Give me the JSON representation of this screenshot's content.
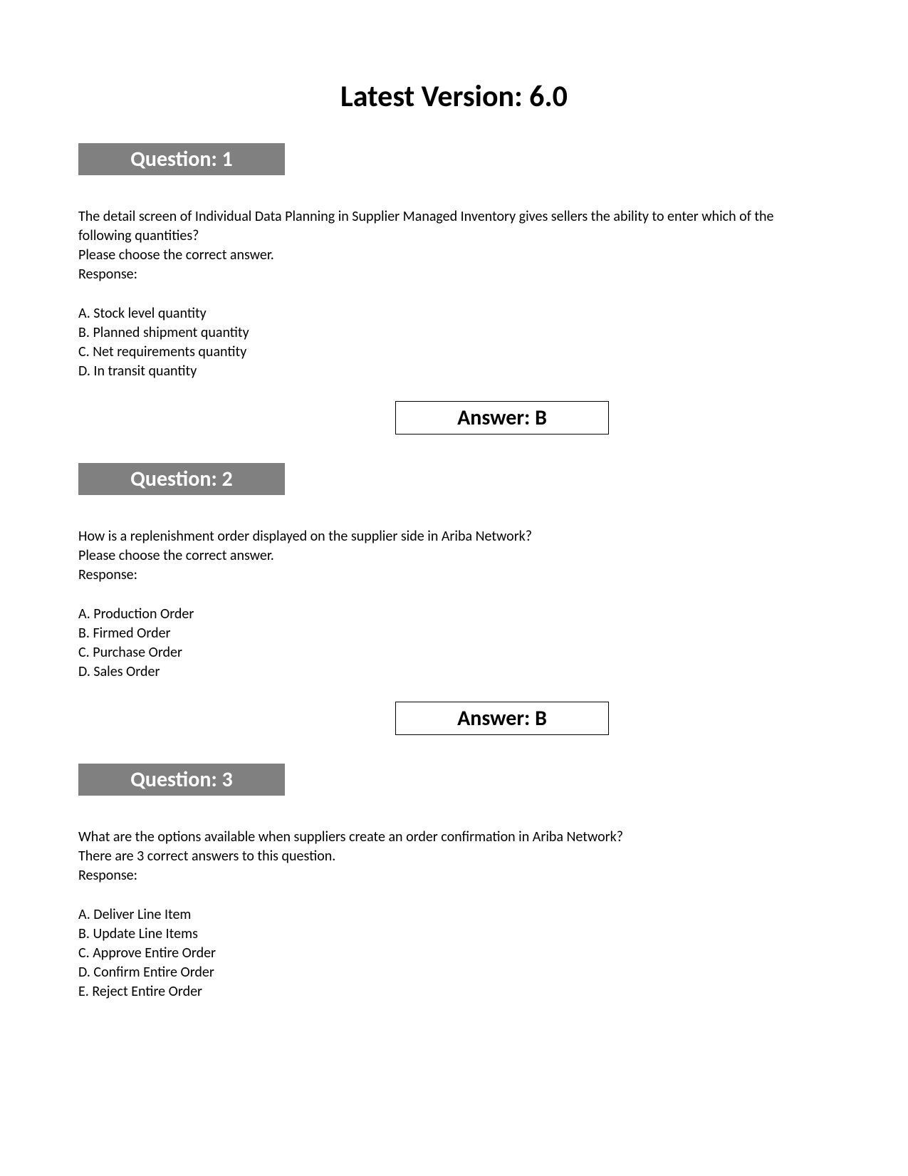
{
  "title": "Latest Version: 6.0",
  "questions": [
    {
      "header": "Question: 1",
      "prompt_lines": [
        "The detail screen of Individual Data Planning in Supplier Managed Inventory gives sellers the ability to enter which of the following quantities?",
        "Please choose the correct answer.",
        "Response:"
      ],
      "options": [
        "A. Stock level quantity",
        "B. Planned shipment quantity",
        "C. Net requirements quantity",
        "D. In transit quantity"
      ],
      "answer": "Answer: B"
    },
    {
      "header": "Question: 2",
      "prompt_lines": [
        "How is a replenishment order displayed on the supplier side in Ariba Network?",
        "Please choose the correct answer.",
        "Response:"
      ],
      "options": [
        "A. Production Order",
        "B. Firmed Order",
        "C. Purchase Order",
        "D. Sales Order"
      ],
      "answer": "Answer: B"
    },
    {
      "header": "Question: 3",
      "prompt_lines": [
        "What are the options available when suppliers create an order confirmation in Ariba Network?",
        "There are 3 correct answers to this question.",
        "Response:"
      ],
      "options": [
        "A. Deliver Line Item",
        "B. Update Line Items",
        "C. Approve Entire Order",
        "D. Confirm Entire Order",
        "E. Reject Entire Order"
      ],
      "answer": null
    }
  ],
  "styles": {
    "header_bg": "#808080",
    "header_fg": "#ffffff",
    "body_fg": "#000000",
    "page_bg": "#ffffff"
  }
}
